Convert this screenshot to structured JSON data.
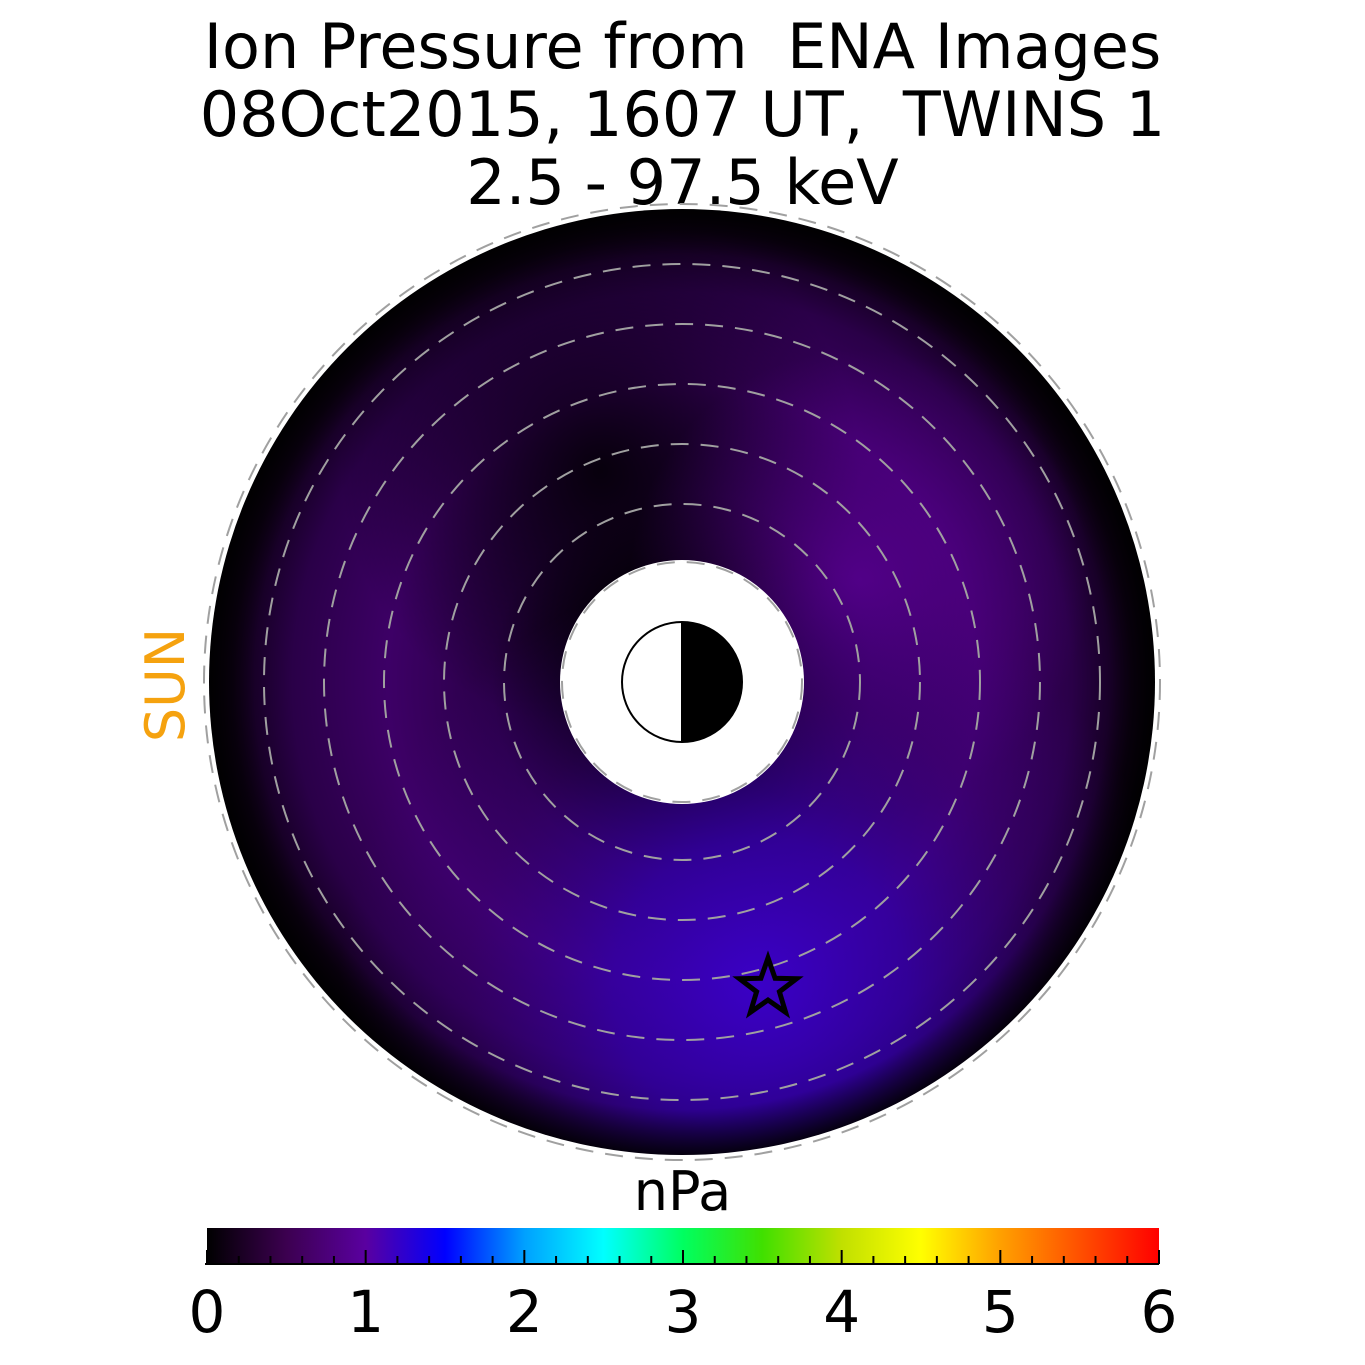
{
  "title_lines": [
    "Ion Pressure from  ENA Images",
    "08Oct2015, 1607 UT,  TWINS 1",
    "2.5 - 97.5 keV"
  ],
  "sun_label": "SUN",
  "colors": {
    "sun_label": "#f5a20f",
    "ring_dash": "#a0a0a0",
    "star_outline": "#000000"
  },
  "chart_data": {
    "type": "heatmap",
    "projection": "polar equatorial plane",
    "sun_direction": "left",
    "title": "Ion Pressure from  ENA Images\n08Oct2015, 1607 UT,  TWINS 1\n2.5 - 97.5 keV",
    "colorbar": {
      "label": "nPa",
      "range": [
        0,
        6
      ],
      "ticks": [
        "0",
        "1",
        "2",
        "3",
        "4",
        "5",
        "6"
      ],
      "colormap": [
        "#000000",
        "#3c0050",
        "#5a00a0",
        "#0000ff",
        "#00a0ff",
        "#00ffff",
        "#00ff60",
        "#40e000",
        "#c0e000",
        "#ffff00",
        "#ffa000",
        "#ff5000",
        "#ff0000"
      ]
    },
    "pressure_range_shown": [
      0,
      1.3
    ],
    "peak_pressure": 1.3,
    "peak_direction": "lower right (dusk side, nightward of dusk)"
  }
}
